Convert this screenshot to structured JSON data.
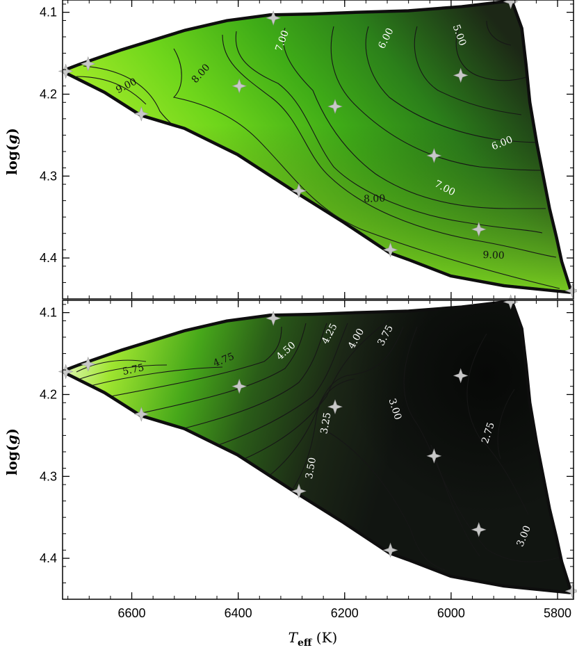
{
  "chart_data": [
    {
      "type": "contour",
      "panel": "top",
      "title": "",
      "xlabel": "T_eff (K)",
      "ylabel": "log(g)",
      "xlim": [
        6730,
        5770
      ],
      "ylim": [
        4.45,
        4.085
      ],
      "xticks": [
        6600,
        6400,
        6200,
        6000,
        5800
      ],
      "xtick_labels": [
        "6600",
        "6400",
        "6200",
        "6000",
        "5800"
      ],
      "yticks": [
        4.1,
        4.2,
        4.3,
        4.4
      ],
      "ytick_labels": [
        "4.1",
        "4.2",
        "4.3",
        "4.4"
      ],
      "ytick_label_shown": [
        "4.1",
        "4.2",
        "4.3",
        "4.4"
      ],
      "ytick_label_parts": [
        [
          "4.1"
        ],
        [
          "4.2"
        ],
        [
          "4.3"
        ],
        [
          "4.4"
        ]
      ],
      "ylabel_parts": [
        "log(",
        "g",
        ")"
      ],
      "grid_points": [
        {
          "teff": 6724,
          "logg": 4.172
        },
        {
          "teff": 6682,
          "logg": 4.163
        },
        {
          "teff": 6582,
          "logg": 4.224
        },
        {
          "teff": 6398,
          "logg": 4.19
        },
        {
          "teff": 6334,
          "logg": 4.107
        },
        {
          "teff": 6286,
          "logg": 4.318
        },
        {
          "teff": 6218,
          "logg": 4.215
        },
        {
          "teff": 6114,
          "logg": 4.39
        },
        {
          "teff": 6032,
          "logg": 4.275
        },
        {
          "teff": 5982,
          "logg": 4.177
        },
        {
          "teff": 5948,
          "logg": 4.365
        },
        {
          "teff": 5888,
          "logg": 4.087
        },
        {
          "teff": 5772,
          "logg": 4.44
        }
      ],
      "contour_labels": [
        {
          "text": "9.00",
          "teff": 6610,
          "logg": 4.19,
          "angle": -27,
          "color": "#111111"
        },
        {
          "text": "8.00",
          "teff": 6470,
          "logg": 4.175,
          "angle": -48,
          "color": "#111111"
        },
        {
          "text": "7.00",
          "teff": 6317,
          "logg": 4.135,
          "angle": -70,
          "color": "#ffffff"
        },
        {
          "text": "6.00",
          "teff": 6122,
          "logg": 4.132,
          "angle": -63,
          "color": "#ffffff"
        },
        {
          "text": "5.00",
          "teff": 5985,
          "logg": 4.128,
          "angle": 70,
          "color": "#ffffff"
        },
        {
          "text": "6.00",
          "teff": 5904,
          "logg": 4.26,
          "angle": -22,
          "color": "#ffffff"
        },
        {
          "text": "7.00",
          "teff": 6012,
          "logg": 4.315,
          "angle": 28,
          "color": "#ffffff"
        },
        {
          "text": "8.00",
          "teff": 6144,
          "logg": 4.328,
          "angle": -2,
          "color": "#111111"
        },
        {
          "text": "9.00",
          "teff": 5920,
          "logg": 4.397,
          "angle": 2,
          "color": "#111111"
        }
      ]
    },
    {
      "type": "contour",
      "panel": "bottom",
      "title": "",
      "xlabel": "T_eff (K)",
      "ylabel": "log(g)",
      "xlim": [
        6730,
        5770
      ],
      "ylim": [
        4.45,
        4.085
      ],
      "xticks": [
        6600,
        6400,
        6200,
        6000,
        5800
      ],
      "xtick_labels": [
        "6600",
        "6400",
        "6200",
        "6000",
        "5800"
      ],
      "yticks": [
        4.1,
        4.2,
        4.3,
        4.4
      ],
      "ytick_labels": [
        "4.1",
        "4.2",
        "4.3",
        "4.4"
      ],
      "ytick_label_shown": [
        "4.1",
        "4.2",
        "4.3",
        "4.4"
      ],
      "ytick_label_parts": [
        [
          "4.1"
        ],
        [
          "4.2"
        ],
        [
          "4.3"
        ],
        [
          "4.4"
        ]
      ],
      "ylabel_parts": [
        "log(",
        "g",
        ")"
      ],
      "grid_points": [
        {
          "teff": 6724,
          "logg": 4.172
        },
        {
          "teff": 6682,
          "logg": 4.163
        },
        {
          "teff": 6582,
          "logg": 4.224
        },
        {
          "teff": 6398,
          "logg": 4.19
        },
        {
          "teff": 6334,
          "logg": 4.107
        },
        {
          "teff": 6286,
          "logg": 4.318
        },
        {
          "teff": 6218,
          "logg": 4.215
        },
        {
          "teff": 6114,
          "logg": 4.39
        },
        {
          "teff": 6032,
          "logg": 4.275
        },
        {
          "teff": 5982,
          "logg": 4.177
        },
        {
          "teff": 5948,
          "logg": 4.365
        },
        {
          "teff": 5888,
          "logg": 4.087
        },
        {
          "teff": 5772,
          "logg": 4.44
        }
      ],
      "contour_labels": [
        {
          "text": "5.75",
          "teff": 6597,
          "logg": 4.17,
          "angle": -12,
          "color": "#111111"
        },
        {
          "text": "4.75",
          "teff": 6427,
          "logg": 4.158,
          "angle": -22,
          "color": "#111111"
        },
        {
          "text": "4.50",
          "teff": 6310,
          "logg": 4.147,
          "angle": -42,
          "color": "#ffffff"
        },
        {
          "text": "4.25",
          "teff": 6228,
          "logg": 4.126,
          "angle": -62,
          "color": "#ffffff"
        },
        {
          "text": "4.00",
          "teff": 6178,
          "logg": 4.132,
          "angle": -60,
          "color": "#ffffff"
        },
        {
          "text": "3.75",
          "teff": 6123,
          "logg": 4.128,
          "angle": -62,
          "color": "#ffffff"
        },
        {
          "text": "3.25",
          "teff": 6235,
          "logg": 4.235,
          "angle": -80,
          "color": "#ffffff"
        },
        {
          "text": "3.00",
          "teff": 6106,
          "logg": 4.218,
          "angle": 72,
          "color": "#ffffff"
        },
        {
          "text": "2.75",
          "teff": 5930,
          "logg": 4.247,
          "angle": -72,
          "color": "#ffffff"
        },
        {
          "text": "3.50",
          "teff": 6263,
          "logg": 4.29,
          "angle": -80,
          "color": "#ffffff"
        },
        {
          "text": "3.00",
          "teff": 5863,
          "logg": 4.373,
          "angle": -68,
          "color": "#ffffff"
        }
      ]
    }
  ],
  "x_axis": {
    "label_parts": [
      "T",
      "eff",
      " (K)"
    ]
  },
  "colors": {
    "light": "#aef230",
    "mid": "#4fc21a",
    "dark": "#1f2a15",
    "star": "#c8c8c8",
    "border": "#0e0e0e"
  }
}
